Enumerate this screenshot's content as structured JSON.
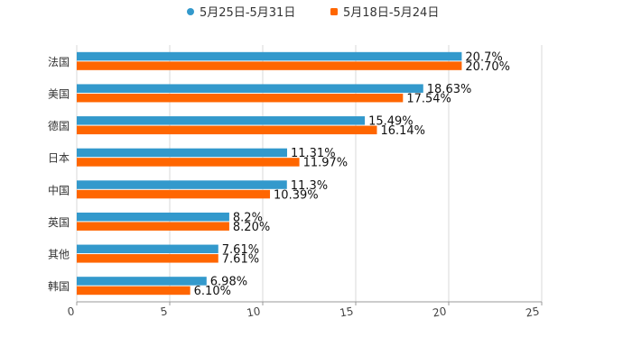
{
  "chart_data": {
    "type": "bar",
    "orientation": "horizontal",
    "title": "",
    "xlabel": "",
    "ylabel": "",
    "xlim": [
      0,
      25
    ],
    "xticks": [
      0,
      5,
      10,
      15,
      20,
      25
    ],
    "grid": true,
    "legend_position": "top-center",
    "categories": [
      "法国",
      "美国",
      "德国",
      "日本",
      "中国",
      "英国",
      "其他",
      "韩国"
    ],
    "series": [
      {
        "name": "5月25日-5月31日",
        "color": "#3399cc",
        "values": [
          20.7,
          18.63,
          15.49,
          11.31,
          11.3,
          8.2,
          7.61,
          6.98
        ],
        "labels": [
          "20.7%",
          "18.63%",
          "15.49%",
          "11.31%",
          "11.3%",
          "8.2%",
          "7.61%",
          "6.98%"
        ]
      },
      {
        "name": "5月18日-5月24日",
        "color": "#ff6600",
        "values": [
          20.7,
          17.54,
          16.14,
          11.97,
          10.39,
          8.2,
          7.61,
          6.1
        ],
        "labels": [
          "20.70%",
          "17.54%",
          "16.14%",
          "11.97%",
          "10.39%",
          "8.20%",
          "7.61%",
          "6.10%"
        ]
      }
    ]
  }
}
